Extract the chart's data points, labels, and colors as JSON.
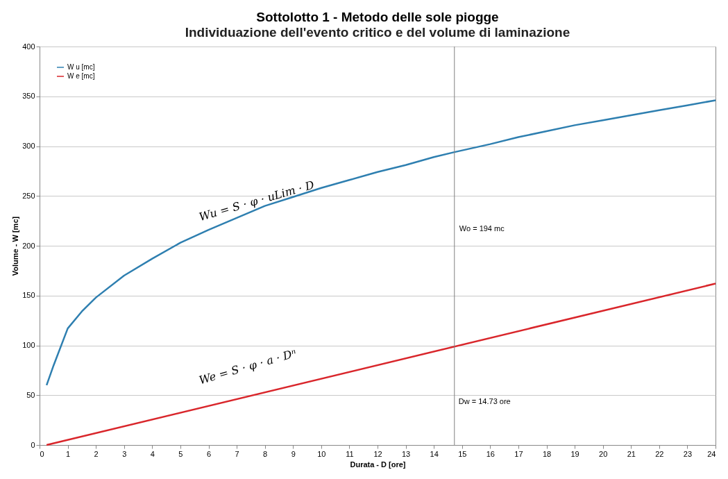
{
  "chart_data": {
    "type": "line",
    "title": "Sottolotto 1 - Metodo delle sole piogge",
    "subtitle": "Individuazione dell'evento critico e del volume di laminazione",
    "xlabel": "Durata - D [ore]",
    "ylabel": "Volume - W [mc]",
    "series": [
      {
        "name": "W u [mc]",
        "color": "#2e7fb0",
        "x": [
          0.25,
          0.5,
          1,
          1.5,
          2,
          3,
          4,
          5,
          6,
          7,
          8,
          9,
          10,
          11,
          12,
          13,
          14,
          14.73,
          16,
          17,
          18,
          19,
          20,
          21,
          22,
          23,
          24
        ],
        "values": [
          60,
          80,
          117,
          134,
          148,
          170,
          187,
          203,
          216,
          228,
          240,
          249,
          258,
          266,
          274,
          281,
          289,
          294,
          302,
          309,
          315,
          321,
          326,
          331,
          336,
          341,
          346
        ]
      },
      {
        "name": "W e [mc]",
        "color": "#d9262b",
        "x": [
          0.25,
          24
        ],
        "values": [
          0,
          162
        ]
      }
    ],
    "xlim": [
      0,
      24
    ],
    "ylim": [
      0,
      400
    ],
    "xticks": [
      0,
      1,
      2,
      3,
      4,
      5,
      6,
      7,
      8,
      9,
      10,
      11,
      12,
      13,
      14,
      15,
      16,
      17,
      18,
      19,
      20,
      21,
      22,
      23,
      24
    ],
    "yticks": [
      0,
      50,
      100,
      150,
      200,
      250,
      300,
      350,
      400
    ],
    "grid": "y",
    "legend": "top left",
    "marker": "none",
    "line_style": "solid",
    "ref_lines": [
      {
        "axis": "x",
        "value": 14.73,
        "label": "Dw = 14.73 ore",
        "color": "#808080"
      }
    ],
    "annotations": [
      "Wu = S · φ · uLim · D",
      "We = S · φ · a · Dⁿ",
      "Wo = 194 mc"
    ]
  }
}
